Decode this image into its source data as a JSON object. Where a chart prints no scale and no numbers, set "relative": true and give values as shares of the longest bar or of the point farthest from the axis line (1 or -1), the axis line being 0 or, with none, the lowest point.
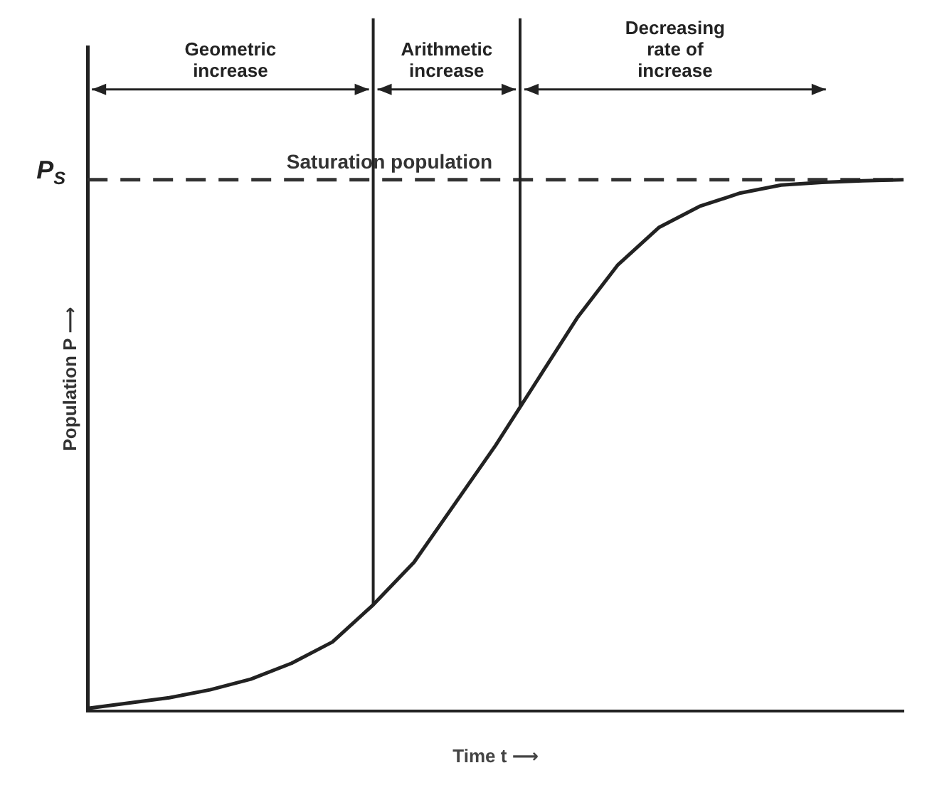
{
  "chart_data": {
    "type": "line",
    "relative": true,
    "xlabel": "Time t ⟶",
    "ylabel": "Population P ⟶",
    "categories": [
      null,
      null,
      null,
      null,
      null,
      null,
      null,
      null,
      null,
      null,
      null,
      null,
      null,
      null,
      null,
      null,
      null,
      null,
      null,
      null,
      null
    ],
    "grid": false,
    "legend": false,
    "marker": "none",
    "line_style": "solid",
    "series": [
      {
        "color": "#222222",
        "values": [
          0.005,
          0.015,
          0.025,
          0.04,
          0.06,
          0.09,
          0.13,
          0.2,
          0.28,
          0.39,
          0.5,
          0.62,
          0.74,
          0.84,
          0.91,
          0.95,
          0.975,
          0.99,
          0.995,
          0.998,
          1.0
        ]
      },
      {
        "name": "Saturation population",
        "color": "#333333",
        "line_style": "dashed",
        "values": [
          1,
          1,
          1,
          1,
          1,
          1,
          1,
          1,
          1,
          1,
          1,
          1,
          1,
          1,
          1,
          1,
          1,
          1,
          1,
          1,
          1
        ]
      }
    ],
    "annotations": [
      "Geometric increase",
      "Arithmetic increase",
      "Decreasing rate of increase",
      "P$_{S}$"
    ]
  }
}
